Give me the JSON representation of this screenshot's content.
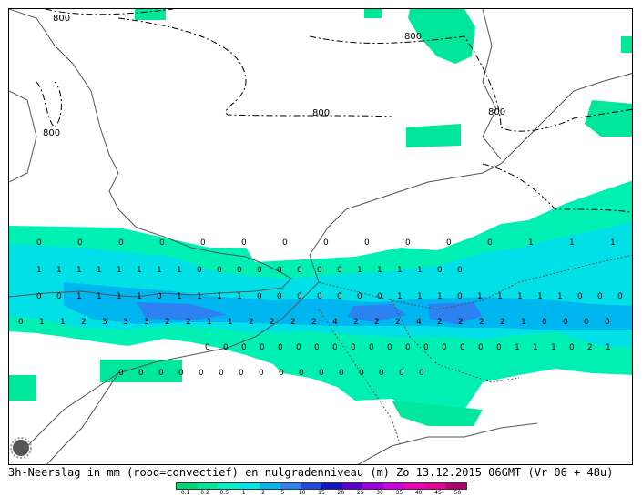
{
  "caption": {
    "left": "3h-Neerslag in mm (rood=convectief) en nulgradenniveau (m)",
    "right": "Zo 13.12.2015 06GMT (Vr 06 + 48u)"
  },
  "legend": {
    "colors": [
      "#00d774",
      "#00e79c",
      "#00f3c8",
      "#00e6e6",
      "#00b6f0",
      "#2c82f0",
      "#1c4ce0",
      "#1414c8",
      "#5a00d6",
      "#a000e6",
      "#d200e6",
      "#f000b4",
      "#e60096",
      "#b4006e"
    ],
    "labels": [
      "0.1",
      "0.2",
      "0.5",
      "1",
      "2",
      "5",
      "10",
      "15",
      "20",
      "25",
      "30",
      "35",
      "40",
      "45",
      "50"
    ]
  },
  "contours": {
    "label": "800",
    "labels": [
      "800",
      "800",
      "800",
      "800",
      "800"
    ]
  },
  "grid_numbers": [
    {
      "row": "r1",
      "values": [
        "0",
        "0",
        "0",
        "0",
        "0",
        "0",
        "0",
        "0",
        "0",
        "0",
        "0",
        "0",
        "1",
        "1",
        "1"
      ]
    },
    {
      "row": "r2",
      "values": [
        "1",
        "1",
        "1",
        "1",
        "1",
        "1",
        "1",
        "1",
        "0",
        "0",
        "0",
        "0",
        "0",
        "0",
        "0",
        "0",
        "1",
        "1",
        "1",
        "1",
        "0",
        "0"
      ]
    },
    {
      "row": "r3",
      "values": [
        "0",
        "0",
        "1",
        "1",
        "1",
        "1",
        "0",
        "1",
        "1",
        "1",
        "1",
        "0",
        "0",
        "0",
        "0",
        "0",
        "0",
        "0",
        "1",
        "1",
        "1",
        "0",
        "1",
        "1",
        "1",
        "1",
        "1",
        "0",
        "0",
        "0"
      ]
    },
    {
      "row": "r4",
      "values": [
        "0",
        "1",
        "1",
        "2",
        "3",
        "3",
        "3",
        "2",
        "2",
        "1",
        "1",
        "2",
        "2",
        "2",
        "2",
        "4",
        "2",
        "2",
        "2",
        "4",
        "2",
        "2",
        "2",
        "2",
        "1",
        "0",
        "0",
        "0",
        "0"
      ]
    },
    {
      "row": "r5",
      "values": [
        "0",
        "0",
        "0",
        "0",
        "0",
        "0",
        "0",
        "0",
        "0",
        "0",
        "0",
        "0",
        "0",
        "0",
        "0",
        "0",
        "0",
        "1",
        "1",
        "1",
        "0",
        "2",
        "1"
      ]
    },
    {
      "row": "r6",
      "values": [
        "0",
        "0",
        "0",
        "0",
        "0",
        "0",
        "0",
        "0",
        "0",
        "0",
        "0",
        "0",
        "0",
        "0",
        "0",
        "0"
      ]
    }
  ],
  "icon": "sun-cloud-icon"
}
